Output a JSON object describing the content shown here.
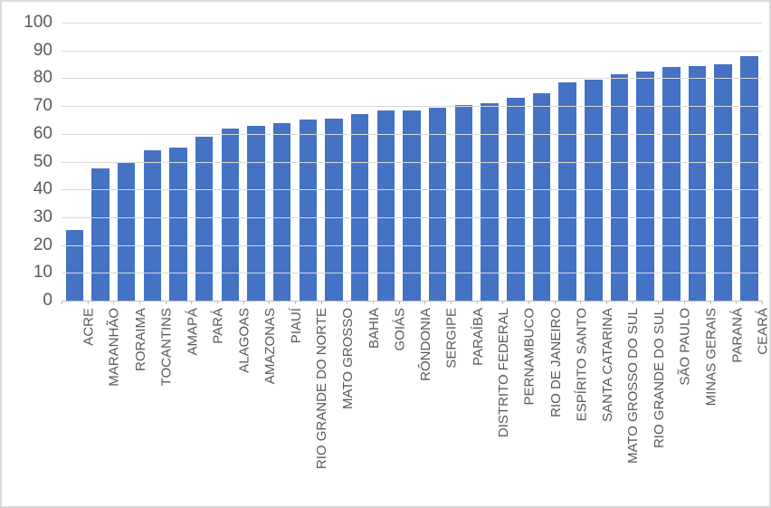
{
  "chart_data": {
    "type": "bar",
    "title": "",
    "xlabel": "",
    "ylabel": "",
    "categories": [
      "ACRE",
      "MARANHÃO",
      "RORAIMA",
      "TOCANTINS",
      "AMAPÁ",
      "PARÁ",
      "ALAGOAS",
      "AMAZONAS",
      "PIAUÍ",
      "RIO GRANDE DO NORTE",
      "MATO GROSSO",
      "BAHIA",
      "GOIÁS",
      "RÔNDONIA",
      "SERGIPE",
      "PARAÍBA",
      "DISTRITO FEDERAL",
      "PERNAMBUCO",
      "RIO DE JANEIRO",
      "ESPÍRITO SANTO",
      "SANTA CATARINA",
      "MATO GROSSO DO SUL",
      "RIO GRANDE DO SUL",
      "SÃO PAULO",
      "MINAS GERAIS",
      "PARANÁ",
      "CEARÁ"
    ],
    "values": [
      25.5,
      47.5,
      49.5,
      54,
      55,
      59,
      62,
      63,
      64,
      65,
      65.5,
      67,
      68.5,
      68.5,
      69.5,
      70.5,
      71,
      73,
      74.5,
      78.5,
      79.5,
      81.5,
      82.5,
      84,
      84.5,
      85,
      88
    ],
    "ylim": [
      0,
      100
    ],
    "yticks": [
      0,
      10,
      20,
      30,
      40,
      50,
      60,
      70,
      80,
      90,
      100
    ],
    "grid": "horizontal",
    "legend": "none",
    "bar_color": "#4472C4",
    "gridline_color": "#D9D9D9",
    "axis_line_color": "#BFBFBF",
    "label_color": "#595959",
    "background_color": "#FFFFFF",
    "border_color": "#D9D9D9"
  }
}
